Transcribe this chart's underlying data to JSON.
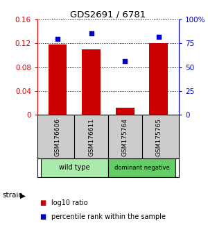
{
  "title": "GDS2691 / 6781",
  "samples": [
    "GSM176606",
    "GSM176611",
    "GSM175764",
    "GSM175765"
  ],
  "log10_ratio": [
    0.118,
    0.11,
    0.012,
    0.121
  ],
  "percentile_rank": [
    0.795,
    0.855,
    0.565,
    0.82
  ],
  "bar_color": "#cc0000",
  "dot_color": "#0000cc",
  "ylim_left": [
    0,
    0.16
  ],
  "ylim_right": [
    0,
    1.0
  ],
  "yticks_left": [
    0,
    0.04,
    0.08,
    0.12,
    0.16
  ],
  "yticks_right": [
    0,
    0.25,
    0.5,
    0.75,
    1.0
  ],
  "ytick_labels_left": [
    "0",
    "0.04",
    "0.08",
    "0.12",
    "0.16"
  ],
  "ytick_labels_right": [
    "0",
    "25",
    "50",
    "75",
    "100%"
  ],
  "groups": [
    {
      "label": "wild type",
      "samples": [
        0,
        1
      ],
      "color": "#aaeaaa"
    },
    {
      "label": "dominant negative",
      "samples": [
        2,
        3
      ],
      "color": "#66cc66"
    }
  ],
  "strain_label": "strain",
  "legend_items": [
    {
      "color": "#cc0000",
      "label": "log10 ratio"
    },
    {
      "color": "#0000cc",
      "label": "percentile rank within the sample"
    }
  ],
  "sample_bg_color": "#cccccc",
  "background_color": "#ffffff",
  "bar_width": 0.55
}
